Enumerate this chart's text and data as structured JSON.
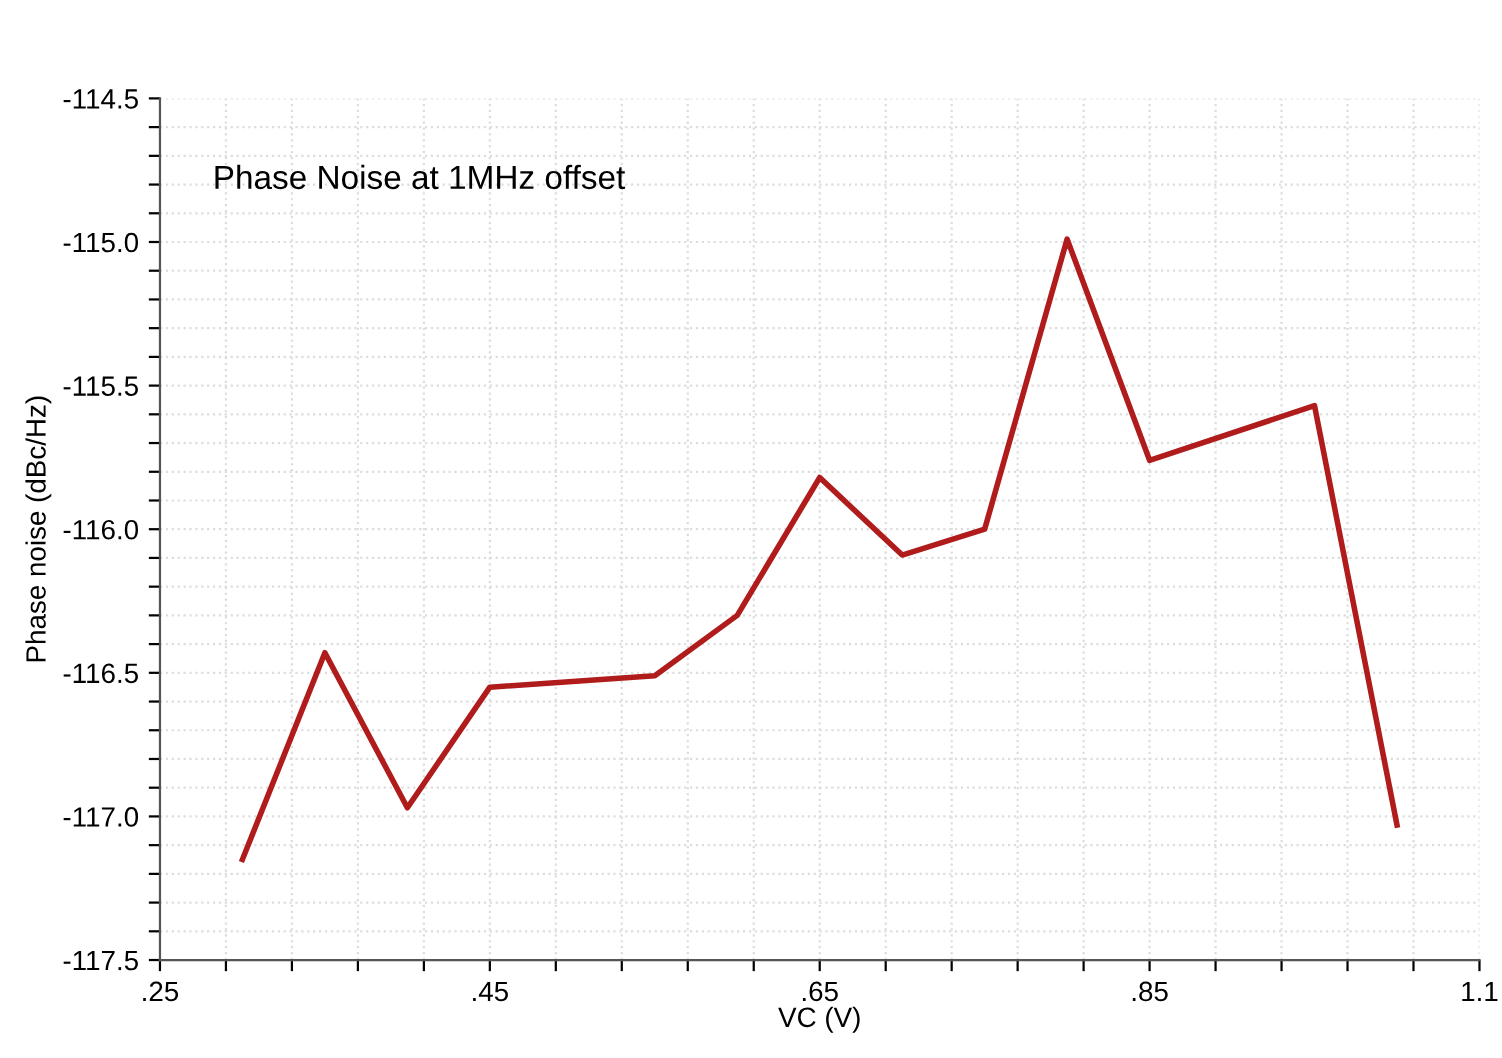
{
  "chart_data": {
    "type": "line",
    "title": "Phase Noise at 1MHz offset",
    "xlabel": "VC (V)",
    "ylabel": "Phase noise (dBc/Hz)",
    "x": [
      0.3,
      0.35,
      0.4,
      0.45,
      0.55,
      0.6,
      0.65,
      0.7,
      0.75,
      0.8,
      0.85,
      0.95,
      1.0
    ],
    "series": [
      {
        "color": "#b01c1c",
        "values": [
          -117.15,
          -116.43,
          -116.97,
          -116.55,
          -116.51,
          -116.3,
          -115.82,
          -116.09,
          -116.0,
          -114.99,
          -115.76,
          -115.57,
          -117.03
        ]
      }
    ],
    "xlim": [
      0.25,
      1.05
    ],
    "ylim": [
      -117.5,
      -114.5
    ],
    "xticks": [
      {
        "value": 0.25,
        "label": ".25"
      },
      {
        "value": 0.29,
        "label": null
      },
      {
        "value": 0.33,
        "label": null
      },
      {
        "value": 0.37,
        "label": null
      },
      {
        "value": 0.41,
        "label": null
      },
      {
        "value": 0.45,
        "label": ".45"
      },
      {
        "value": 0.49,
        "label": null
      },
      {
        "value": 0.53,
        "label": null
      },
      {
        "value": 0.57,
        "label": null
      },
      {
        "value": 0.61,
        "label": null
      },
      {
        "value": 0.65,
        "label": ".65"
      },
      {
        "value": 0.69,
        "label": null
      },
      {
        "value": 0.73,
        "label": null
      },
      {
        "value": 0.77,
        "label": null
      },
      {
        "value": 0.81,
        "label": null
      },
      {
        "value": 0.85,
        "label": ".85"
      },
      {
        "value": 0.89,
        "label": null
      },
      {
        "value": 0.93,
        "label": null
      },
      {
        "value": 0.97,
        "label": null
      },
      {
        "value": 1.01,
        "label": null
      },
      {
        "value": 1.05,
        "label": "1.1"
      }
    ],
    "yticks": [
      -117.5,
      {
        "value": -117.4,
        "label": null
      },
      {
        "value": -117.3,
        "label": null
      },
      {
        "value": -117.2,
        "label": null
      },
      {
        "value": -117.1,
        "label": null
      },
      {
        "value": -117.0,
        "label": "-117.0"
      },
      {
        "value": -116.9,
        "label": null
      },
      {
        "value": -116.8,
        "label": null
      },
      {
        "value": -116.7,
        "label": null
      },
      {
        "value": -116.6,
        "label": null
      },
      -116.5,
      {
        "value": -116.4,
        "label": null
      },
      {
        "value": -116.3,
        "label": null
      },
      {
        "value": -116.2,
        "label": null
      },
      {
        "value": -116.1,
        "label": null
      },
      {
        "value": -116.0,
        "label": "-116.0"
      },
      {
        "value": -115.9,
        "label": null
      },
      {
        "value": -115.8,
        "label": null
      },
      {
        "value": -115.7,
        "label": null
      },
      {
        "value": -115.6,
        "label": null
      },
      -115.5,
      {
        "value": -115.4,
        "label": null
      },
      {
        "value": -115.3,
        "label": null
      },
      {
        "value": -115.2,
        "label": null
      },
      {
        "value": -115.1,
        "label": null
      },
      {
        "value": -115.0,
        "label": "-115.0"
      },
      {
        "value": -114.9,
        "label": null
      },
      {
        "value": -114.8,
        "label": null
      },
      {
        "value": -114.7,
        "label": null
      },
      {
        "value": -114.6,
        "label": null
      },
      -114.5
    ],
    "grid": true,
    "line_style": "solid"
  }
}
